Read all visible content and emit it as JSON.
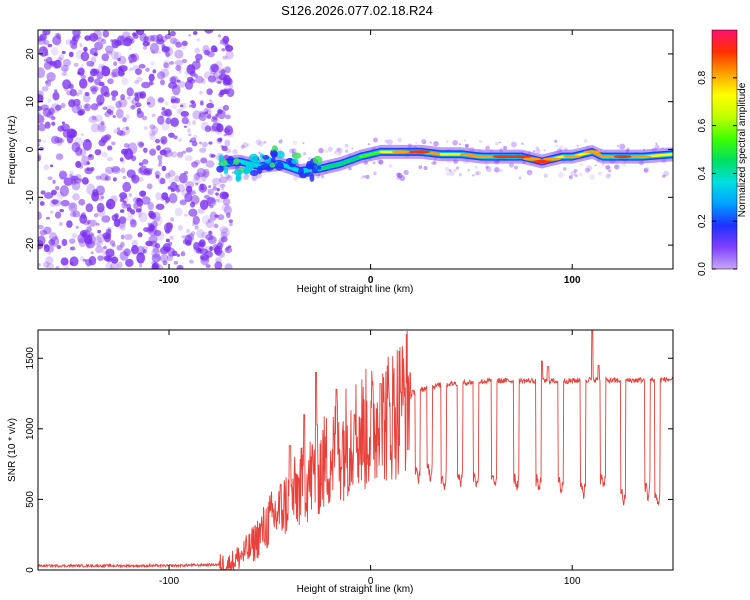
{
  "title": "S126.2026.077.02.18.R24",
  "colors": {
    "snr_line": "#e8403a",
    "speckle": "#7a2ff0",
    "frame": "#000000"
  },
  "chart_data": [
    {
      "type": "heatmap",
      "panel": "spectrogram",
      "xlabel": "Height of straight line (km)",
      "ylabel": "Frequency (Hz)",
      "xlim": [
        -165,
        150
      ],
      "ylim": [
        -25,
        25
      ],
      "x_ticks": [
        -100,
        0,
        100
      ],
      "x_tick_labels": [
        "-100",
        "0",
        "100"
      ],
      "y_ticks": [
        20,
        10,
        0,
        -10,
        -20
      ],
      "y_tick_labels": [
        "20",
        "10",
        "0",
        "-10",
        "-20"
      ],
      "noise_region": {
        "x_from": -165,
        "x_to": -75,
        "description_level": 0.2
      },
      "ridge": {
        "x": [
          -75,
          -65,
          -55,
          -45,
          -35,
          -25,
          -15,
          -5,
          0,
          5,
          15,
          25,
          35,
          45,
          55,
          65,
          75,
          80,
          85,
          90,
          95,
          100,
          105,
          110,
          115,
          125,
          135,
          150
        ],
        "freq": [
          -3,
          -2.5,
          -3.5,
          -3,
          -4.5,
          -4,
          -3,
          -1.5,
          -1,
          -0.5,
          -0.5,
          -0.5,
          -1,
          -1,
          -1.5,
          -1.5,
          -1.5,
          -2,
          -2.5,
          -2,
          -1.5,
          -1.5,
          -1,
          -0.5,
          -1.5,
          -1.5,
          -1.5,
          -1
        ],
        "amplitude": [
          0.35,
          0.4,
          0.35,
          0.35,
          0.3,
          0.4,
          0.45,
          0.5,
          0.55,
          0.6,
          0.85,
          0.9,
          0.7,
          0.75,
          0.8,
          0.9,
          0.9,
          0.85,
          0.95,
          0.8,
          0.7,
          0.8,
          0.6,
          0.85,
          0.75,
          0.9,
          0.8,
          0.6
        ]
      },
      "colorbar": {
        "label": "Normalized spectral amplitude",
        "range": [
          0,
          1
        ],
        "ticks": [
          0,
          0.2,
          0.4,
          0.6,
          0.8
        ],
        "tick_labels": [
          "0.0",
          "0.2",
          "0.4",
          "0.6",
          "0.8"
        ],
        "stops": [
          "#c8a8f5",
          "#8040ff",
          "#2030ff",
          "#00a0ff",
          "#00e0e0",
          "#00e060",
          "#40ff00",
          "#c0ff00",
          "#ffff00",
          "#ffa000",
          "#ff3000",
          "#ff1070"
        ]
      }
    },
    {
      "type": "line",
      "panel": "snr",
      "xlabel": "Height of straight line (km)",
      "ylabel": "SNR (10 * v/v)",
      "xlim": [
        -165,
        150
      ],
      "ylim": [
        0,
        1700
      ],
      "x_ticks": [
        -100,
        0,
        100
      ],
      "x_tick_labels": [
        "-100",
        "0",
        "100"
      ],
      "y_ticks": [
        0,
        500,
        1000,
        1500
      ],
      "y_tick_labels": [
        "0",
        "500",
        "1000",
        "1500"
      ],
      "baseline": 30,
      "x": [
        -165,
        -100,
        -70,
        -60,
        -50,
        -40,
        -30,
        -20,
        -10,
        0,
        10,
        20,
        30,
        40,
        50,
        60,
        80,
        100,
        110,
        120,
        150
      ],
      "y": [
        30,
        30,
        40,
        150,
        350,
        500,
        650,
        800,
        950,
        1000,
        1100,
        1250,
        1300,
        1320,
        1330,
        1340,
        1340,
        1340,
        1350,
        1340,
        1350
      ],
      "dropouts": [
        {
          "x": 22,
          "low": 670
        },
        {
          "x": 28,
          "low": 700
        },
        {
          "x": 35,
          "low": 630
        },
        {
          "x": 43,
          "low": 650
        },
        {
          "x": 51,
          "low": 640
        },
        {
          "x": 60,
          "low": 620
        },
        {
          "x": 71,
          "low": 620
        },
        {
          "x": 82,
          "low": 600
        },
        {
          "x": 93,
          "low": 600
        },
        {
          "x": 104,
          "low": 570
        },
        {
          "x": 114,
          "low": 630
        },
        {
          "x": 124,
          "low": 520
        },
        {
          "x": 136,
          "low": 560
        },
        {
          "x": 141,
          "low": 500
        }
      ],
      "spikes": [
        {
          "x": -40,
          "y": 880
        },
        {
          "x": -33,
          "y": 1100
        },
        {
          "x": -27,
          "y": 1400
        },
        {
          "x": -17,
          "y": 1280
        },
        {
          "x": -8,
          "y": 1100
        },
        {
          "x": 5,
          "y": 1320
        },
        {
          "x": 15,
          "y": 1260
        },
        {
          "x": 85,
          "y": 1480
        },
        {
          "x": 88,
          "y": 1440
        },
        {
          "x": 110,
          "y": 1700
        },
        {
          "x": 113,
          "y": 1450
        }
      ]
    }
  ]
}
